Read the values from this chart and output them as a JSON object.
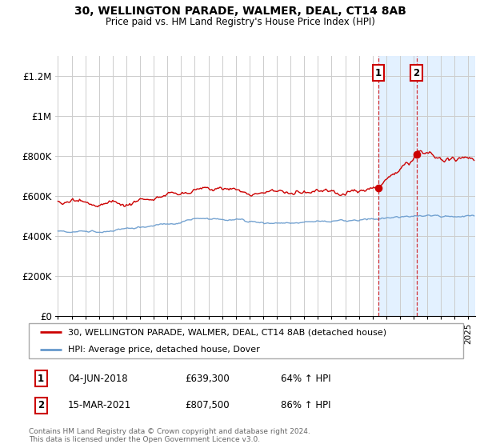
{
  "title": "30, WELLINGTON PARADE, WALMER, DEAL, CT14 8AB",
  "subtitle": "Price paid vs. HM Land Registry's House Price Index (HPI)",
  "ylim": [
    0,
    1300000
  ],
  "yticks": [
    0,
    200000,
    400000,
    600000,
    800000,
    1000000,
    1200000
  ],
  "ytick_labels": [
    "£0",
    "£200K",
    "£400K",
    "£600K",
    "£800K",
    "£1M",
    "£1.2M"
  ],
  "legend_line1": "30, WELLINGTON PARADE, WALMER, DEAL, CT14 8AB (detached house)",
  "legend_line2": "HPI: Average price, detached house, Dover",
  "annotation1_date": "04-JUN-2018",
  "annotation1_price": "£639,300",
  "annotation1_hpi": "64% ↑ HPI",
  "annotation2_date": "15-MAR-2021",
  "annotation2_price": "£807,500",
  "annotation2_hpi": "86% ↑ HPI",
  "copyright": "Contains HM Land Registry data © Crown copyright and database right 2024.\nThis data is licensed under the Open Government Licence v3.0.",
  "red_color": "#cc0000",
  "blue_color": "#6699cc",
  "highlight_bg": "#ddeeff",
  "point1_x": 2018.42,
  "point1_y": 639300,
  "point2_x": 2021.21,
  "point2_y": 807500,
  "xmin": 1994.8,
  "xmax": 2025.5
}
